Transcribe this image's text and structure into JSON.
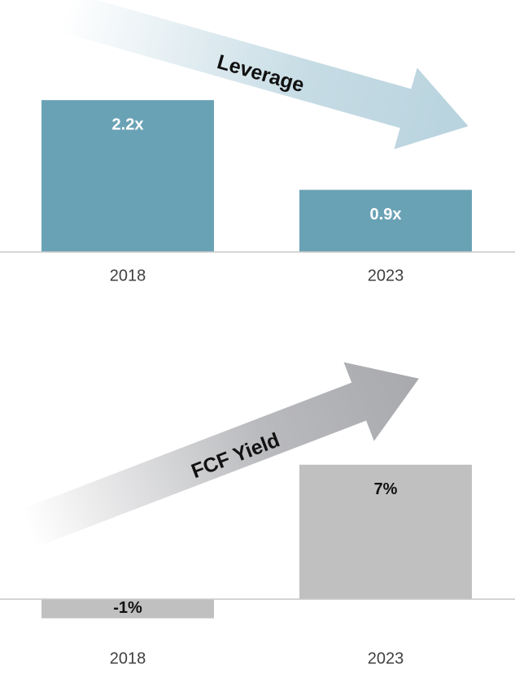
{
  "chart_data": [
    {
      "type": "bar",
      "categories": [
        "2018",
        "2023"
      ],
      "values": [
        2.2,
        0.9
      ],
      "value_labels": [
        "2.2x",
        "0.9x"
      ],
      "color": "#6aa2b5",
      "label_color": "#ffffff",
      "annotation": "Leverage",
      "ylim": [
        0,
        3.65
      ]
    },
    {
      "type": "bar",
      "categories": [
        "2018",
        "2023"
      ],
      "values": [
        -1,
        7
      ],
      "value_labels": [
        "-1%",
        "7%"
      ],
      "color": "#c0c0c0",
      "label_color": "#111111",
      "annotation": "FCF Yield",
      "ylim": [
        -1.5,
        13
      ]
    }
  ]
}
